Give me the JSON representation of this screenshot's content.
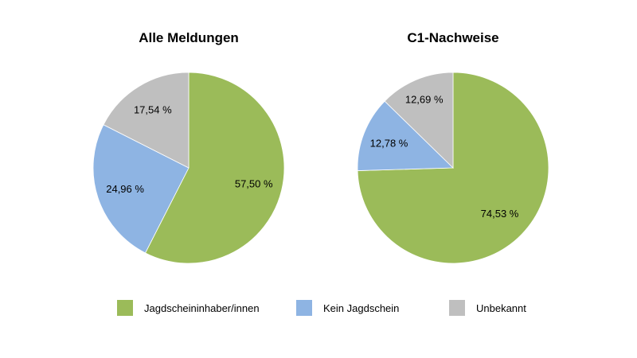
{
  "chart_data": [
    {
      "type": "pie",
      "title": "Alle Meldungen",
      "slices": [
        {
          "category": "Jagdscheininhaber/innen",
          "value": 57.5,
          "label": "57,50 %"
        },
        {
          "category": "Kein Jagdschein",
          "value": 24.96,
          "label": "24,96 %"
        },
        {
          "category": "Unbekannt",
          "value": 17.54,
          "label": "17,54 %"
        }
      ]
    },
    {
      "type": "pie",
      "title": "C1-Nachweise",
      "slices": [
        {
          "category": "Jagdscheininhaber/innen",
          "value": 74.53,
          "label": "74,53 %"
        },
        {
          "category": "Kein Jagdschein",
          "value": 12.78,
          "label": "12,78 %"
        },
        {
          "category": "Unbekannt",
          "value": 12.69,
          "label": "12,69 %"
        }
      ]
    }
  ],
  "legend": {
    "placement": "bottom",
    "items": [
      {
        "label": "Jagdscheininhaber/innen",
        "color": "#9BBB59"
      },
      {
        "label": "Kein Jagdschein",
        "color": "#8EB4E3"
      },
      {
        "label": "Unbekannt",
        "color": "#BFBFBF"
      }
    ]
  }
}
